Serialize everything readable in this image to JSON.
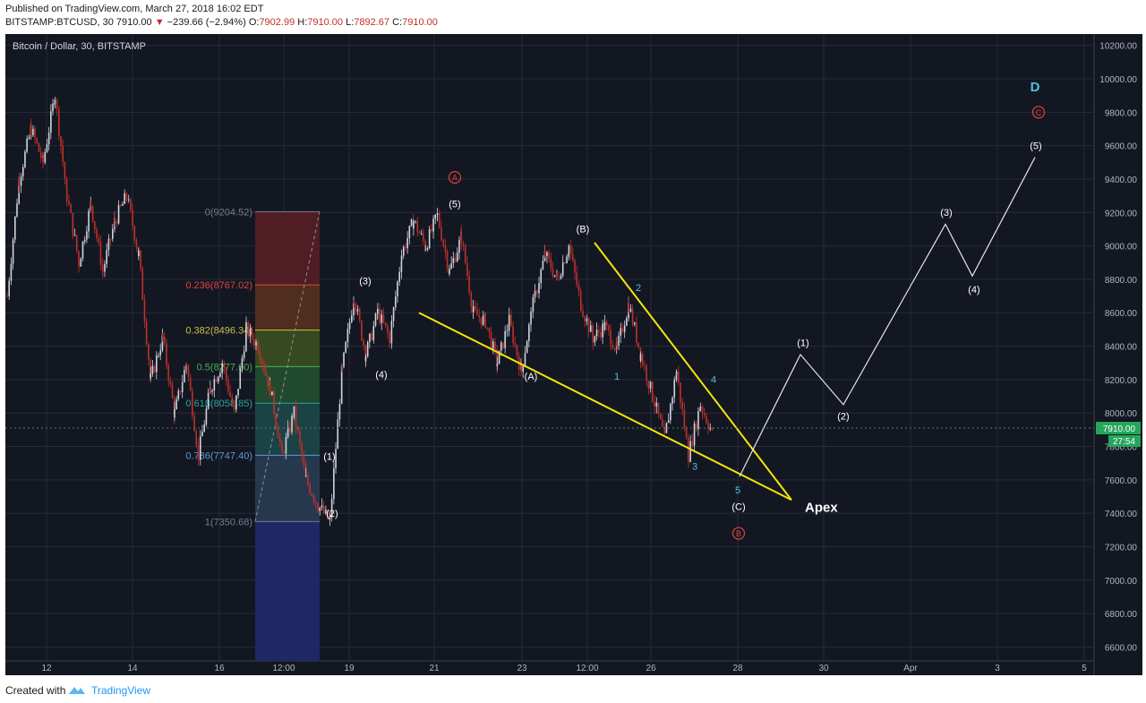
{
  "header": {
    "published": "Published on TradingView.com, March 27, 2018 16:02 EDT",
    "symbol": "BITSTAMP:BTCUSD, 30",
    "last": "7910.00",
    "change_arrow": "▼",
    "change": "−239.66 (−2.94%)",
    "o_label": "O:",
    "o_value": "7902.99",
    "h_label": "H:",
    "h_value": "7910.00",
    "l_label": "L:",
    "l_value": "7892.67",
    "c_label": "C:",
    "c_value": "7910.00"
  },
  "footer": {
    "created": "Created with",
    "brand": "TradingView",
    "brand_icon": "tradingview-cloud-icon"
  },
  "colors": {
    "background": "#131722",
    "grid": "#262b38",
    "up": "#d1d4dc",
    "down": "#c0302a",
    "trendline": "#f5e50b",
    "projection": "#e6e6e6",
    "wave_cyan": "#4fc3dc",
    "wave_red": "#e0433a"
  },
  "chart_data": {
    "type": "candlestick",
    "title": "Bitcoin / Dollar, 30, BITSTAMP",
    "xlabel": "",
    "ylabel": "",
    "grid": true,
    "ylim": [
      6500,
      10300
    ],
    "y_ticks": [
      "10200.00",
      "10000.00",
      "9800.00",
      "9600.00",
      "9400.00",
      "9200.00",
      "9000.00",
      "8800.00",
      "8600.00",
      "8400.00",
      "8200.00",
      "8000.00",
      "7800.00",
      "7600.00",
      "7400.00",
      "7200.00",
      "7000.00",
      "6800.00",
      "6600.00"
    ],
    "x_ticks": [
      "12",
      "14",
      "16",
      "12:00",
      "19",
      "21",
      "23",
      "12:00",
      "26",
      "28",
      "30",
      "Apr",
      "3",
      "5"
    ],
    "price_path": [
      [
        0,
        8700
      ],
      [
        1,
        9400
      ],
      [
        2,
        9700
      ],
      [
        3,
        9500
      ],
      [
        4,
        9900
      ],
      [
        5,
        9300
      ],
      [
        6,
        8900
      ],
      [
        7,
        9250
      ],
      [
        8,
        8850
      ],
      [
        9,
        9150
      ],
      [
        10,
        9300
      ],
      [
        11,
        8950
      ],
      [
        12,
        8200
      ],
      [
        13,
        8450
      ],
      [
        14,
        8000
      ],
      [
        15,
        8300
      ],
      [
        16,
        7750
      ],
      [
        17,
        8150
      ],
      [
        18,
        8300
      ],
      [
        19,
        8000
      ],
      [
        20,
        8500
      ],
      [
        21,
        8400
      ],
      [
        22,
        8150
      ],
      [
        23,
        7750
      ],
      [
        24,
        8000
      ],
      [
        25,
        7600
      ],
      [
        26,
        7450
      ],
      [
        27,
        7350
      ],
      [
        28,
        8250
      ],
      [
        29,
        8700
      ],
      [
        30,
        8350
      ],
      [
        31,
        8600
      ],
      [
        32,
        8450
      ],
      [
        33,
        8950
      ],
      [
        34,
        9150
      ],
      [
        35,
        9000
      ],
      [
        36,
        9180
      ],
      [
        37,
        8850
      ],
      [
        38,
        9050
      ],
      [
        39,
        8600
      ],
      [
        40,
        8550
      ],
      [
        41,
        8300
      ],
      [
        42,
        8550
      ],
      [
        43,
        8250
      ],
      [
        44,
        8650
      ],
      [
        45,
        8950
      ],
      [
        46,
        8800
      ],
      [
        47,
        9000
      ],
      [
        48,
        8650
      ],
      [
        49,
        8450
      ],
      [
        50,
        8520
      ],
      [
        51,
        8380
      ],
      [
        52,
        8650
      ],
      [
        53,
        8350
      ],
      [
        54,
        8100
      ],
      [
        55,
        7850
      ],
      [
        56,
        8250
      ],
      [
        57,
        7750
      ],
      [
        58,
        8050
      ],
      [
        59,
        7880
      ]
    ],
    "last_price": "7910.00",
    "countdown": "27:54",
    "fibonacci": {
      "top": 9204.52,
      "bottom": 7350.68,
      "levels": [
        {
          "label": "0(9204.52)",
          "price": 9204.52,
          "color": "#787b86"
        },
        {
          "label": "0.236(8767.02)",
          "price": 8767.02,
          "color": "#e0433a"
        },
        {
          "label": "0.382(8496.34)",
          "price": 8496.34,
          "color": "#c8c04a"
        },
        {
          "label": "0.5(8277.60)",
          "price": 8277.6,
          "color": "#4caf50"
        },
        {
          "label": "0.618(8058.85)",
          "price": 8058.85,
          "color": "#26a69a"
        },
        {
          "label": "0.786(7747.40)",
          "price": 7747.4,
          "color": "#5b9bd5"
        },
        {
          "label": "1(7350.68)",
          "price": 7350.68,
          "color": "#787b86"
        }
      ]
    },
    "wave_labels_white": [
      "(1)",
      "(2)",
      "(3)",
      "(4)",
      "(5)",
      "(A)",
      "(B)",
      "(C)"
    ],
    "wave_labels_cyan": [
      "1",
      "2",
      "3",
      "4",
      "5"
    ],
    "circle_labels": [
      "A",
      "B",
      "C"
    ],
    "projection_labels": [
      "(1)",
      "(2)",
      "(3)",
      "(4)",
      "(5)"
    ],
    "big_label": "D",
    "apex_label": "Apex"
  }
}
